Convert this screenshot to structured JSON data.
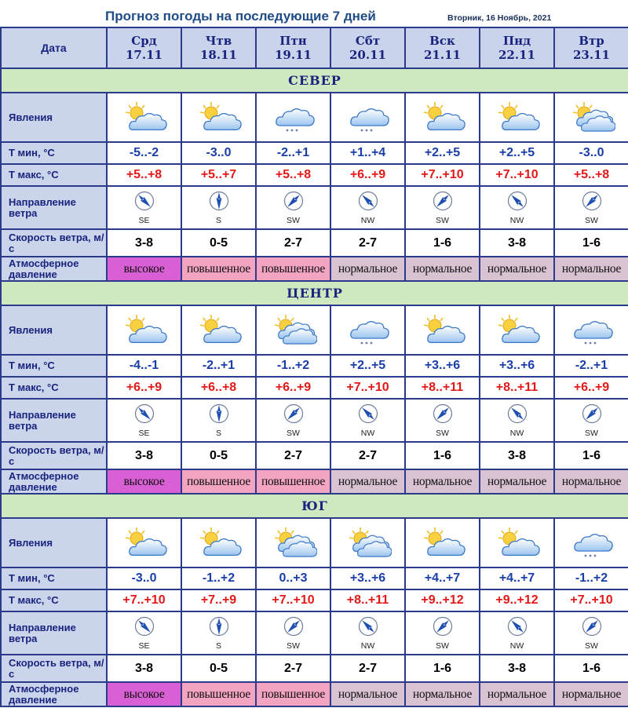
{
  "page": {
    "title": "Прогноз погоды на последующие 7 дней",
    "date": "Вторник, 16 Ноябрь, 2021"
  },
  "header": {
    "label": "Дата",
    "days": [
      {
        "day": "Срд",
        "date": "17.11"
      },
      {
        "day": "Чтв",
        "date": "18.11"
      },
      {
        "day": "Птн",
        "date": "19.11"
      },
      {
        "day": "Сбт",
        "date": "20.11"
      },
      {
        "day": "Вск",
        "date": "21.11"
      },
      {
        "day": "Пнд",
        "date": "22.11"
      },
      {
        "day": "Втр",
        "date": "23.11"
      }
    ]
  },
  "row_labels": {
    "phenomena": "Явления",
    "tmin": "Т мин, °С",
    "tmax": "Т макс, °С",
    "wind_dir": "Направление ветра",
    "wind_speed": "Скорость ветра, м/с",
    "pressure": "Атмосферное давление"
  },
  "regions": [
    {
      "name": "СЕВЕР",
      "phenomena": [
        "partly-cloudy-icon",
        "partly-cloudy-icon",
        "cloud-snow-icon",
        "cloud-snow-icon",
        "partly-cloudy-icon",
        "partly-cloudy-icon",
        "partly-overcast-icon"
      ],
      "tmin": [
        "-5..-2",
        "-3..0",
        "-2..+1",
        "+1..+4",
        "+2..+5",
        "+2..+5",
        "-3..0"
      ],
      "tmax": [
        "+5..+8",
        "+5..+7",
        "+5..+8",
        "+6..+9",
        "+7..+10",
        "+7..+10",
        "+5..+8"
      ],
      "wind_dir": [
        "SE",
        "S",
        "SW",
        "NW",
        "SW",
        "NW",
        "SW"
      ],
      "wind_speed": [
        "3-8",
        "0-5",
        "2-7",
        "2-7",
        "1-6",
        "3-8",
        "1-6"
      ],
      "pressure": [
        "высокое",
        "повышенное",
        "повышенное",
        "нормальное",
        "нормальное",
        "нормальное",
        "нормальное"
      ]
    },
    {
      "name": "ЦЕНТР",
      "phenomena": [
        "partly-cloudy-icon",
        "partly-cloudy-icon",
        "partly-overcast-icon",
        "cloud-snow-icon",
        "partly-cloudy-icon",
        "partly-cloudy-icon",
        "cloud-snow-icon"
      ],
      "tmin": [
        "-4..-1",
        "-2..+1",
        "-1..+2",
        "+2..+5",
        "+3..+6",
        "+3..+6",
        "-2..+1"
      ],
      "tmax": [
        "+6..+9",
        "+6..+8",
        "+6..+9",
        "+7..+10",
        "+8..+11",
        "+8..+11",
        "+6..+9"
      ],
      "wind_dir": [
        "SE",
        "S",
        "SW",
        "NW",
        "SW",
        "NW",
        "SW"
      ],
      "wind_speed": [
        "3-8",
        "0-5",
        "2-7",
        "2-7",
        "1-6",
        "3-8",
        "1-6"
      ],
      "pressure": [
        "высокое",
        "повышенное",
        "повышенное",
        "нормальное",
        "нормальное",
        "нормальное",
        "нормальное"
      ]
    },
    {
      "name": "ЮГ",
      "phenomena": [
        "partly-cloudy-icon",
        "partly-cloudy-icon",
        "partly-overcast-icon",
        "partly-overcast-icon",
        "partly-cloudy-icon",
        "partly-cloudy-icon",
        "cloud-snow-icon"
      ],
      "tmin": [
        "-3..0",
        "-1..+2",
        "0..+3",
        "+3..+6",
        "+4..+7",
        "+4..+7",
        "-1..+2"
      ],
      "tmax": [
        "+7..+10",
        "+7..+9",
        "+7..+10",
        "+8..+11",
        "+9..+12",
        "+9..+12",
        "+7..+10"
      ],
      "wind_dir": [
        "SE",
        "S",
        "SW",
        "NW",
        "SW",
        "NW",
        "SW"
      ],
      "wind_speed": [
        "3-8",
        "0-5",
        "2-7",
        "2-7",
        "1-6",
        "3-8",
        "1-6"
      ],
      "pressure": [
        "высокое",
        "повышенное",
        "повышенное",
        "нормальное",
        "нормальное",
        "нормальное",
        "нормальное"
      ]
    }
  ],
  "colors": {
    "header_bg": "#c9d4ec",
    "region_bg": "#cfe8bf",
    "tmin_text": "#1a3ea8",
    "tmax_text": "#e41818",
    "pressure_high": "#d85fd4",
    "pressure_elevated": "#f2a4c0",
    "pressure_normal": "#d9c3d2"
  }
}
